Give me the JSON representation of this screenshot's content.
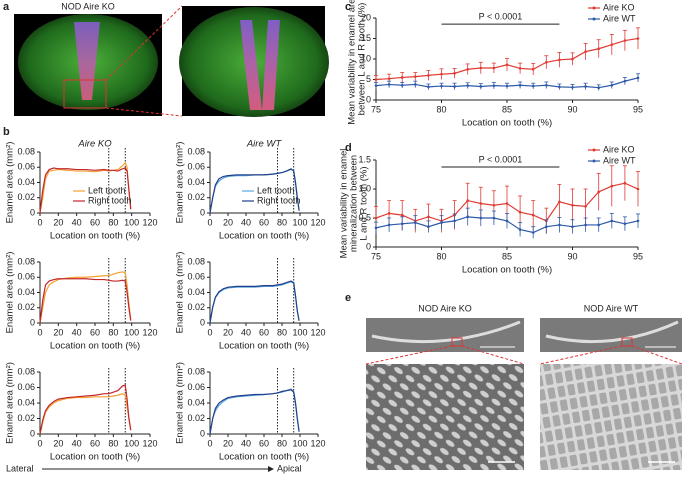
{
  "panel_letters": [
    "a",
    "b",
    "c",
    "d",
    "e"
  ],
  "panel_a_label": "NOD Aire KO",
  "panel_e_labels": [
    "NOD Aire KO",
    "NOD Aire WT"
  ],
  "axis_direction": {
    "left": "Lateral",
    "right": "Apical"
  },
  "chart_data": [
    {
      "type": "line",
      "title": "Aire KO",
      "x_label": "Location on tooth (%)",
      "y_label": "Enamel area (mm²)",
      "x": [
        0,
        3,
        6,
        10,
        15,
        20,
        30,
        40,
        50,
        60,
        70,
        75,
        80,
        85,
        90,
        93,
        95,
        97,
        99
      ],
      "xlim": [
        0,
        120
      ],
      "xticks": [
        0,
        20,
        40,
        60,
        80,
        100,
        120
      ],
      "ylim": [
        0,
        0.08
      ],
      "yticks": [
        0,
        0.02,
        0.04,
        0.06,
        0.08
      ],
      "vlines": [
        75,
        93
      ],
      "legend": "lower center",
      "series": [
        {
          "name": "Left tooth",
          "color": "#f5a031",
          "values": [
            0,
            0.02,
            0.045,
            0.055,
            0.056,
            0.057,
            0.056,
            0.055,
            0.055,
            0.054,
            0.056,
            0.055,
            0.056,
            0.057,
            0.062,
            0.066,
            0.06,
            0.03,
            0.005
          ]
        },
        {
          "name": "Right tooth",
          "color": "#c3262b",
          "values": [
            0,
            0.03,
            0.05,
            0.057,
            0.059,
            0.058,
            0.058,
            0.057,
            0.057,
            0.056,
            0.057,
            0.056,
            0.056,
            0.055,
            0.058,
            0.059,
            0.055,
            0.03,
            0.005
          ]
        }
      ]
    },
    {
      "type": "line",
      "title": "Aire WT",
      "x_label": "Location on tooth (%)",
      "y_label": "Enamel area (mm²)",
      "x": [
        0,
        3,
        6,
        10,
        15,
        20,
        30,
        40,
        50,
        60,
        70,
        75,
        80,
        85,
        90,
        93,
        95,
        97,
        99
      ],
      "xlim": [
        0,
        120
      ],
      "xticks": [
        0,
        20,
        40,
        60,
        80,
        100,
        120
      ],
      "ylim": [
        0,
        0.08
      ],
      "yticks": [
        0,
        0.02,
        0.04,
        0.06,
        0.08
      ],
      "vlines": [
        75,
        93
      ],
      "legend": "lower center",
      "series": [
        {
          "name": "Left tooth",
          "color": "#5ba6dc",
          "values": [
            0,
            0.02,
            0.035,
            0.042,
            0.046,
            0.048,
            0.049,
            0.049,
            0.05,
            0.05,
            0.051,
            0.052,
            0.053,
            0.055,
            0.057,
            0.056,
            0.04,
            0.02,
            0.003
          ]
        },
        {
          "name": "Right tooth",
          "color": "#23408c",
          "values": [
            0,
            0.02,
            0.037,
            0.045,
            0.048,
            0.049,
            0.05,
            0.05,
            0.05,
            0.05,
            0.051,
            0.052,
            0.053,
            0.055,
            0.058,
            0.055,
            0.04,
            0.02,
            0.003
          ]
        }
      ]
    },
    {
      "type": "line",
      "x_label": "Location on tooth (%)",
      "y_label": "Enamel area (mm²)",
      "x": [
        0,
        3,
        6,
        10,
        15,
        20,
        30,
        40,
        50,
        60,
        70,
        75,
        80,
        85,
        90,
        93,
        95,
        97,
        99
      ],
      "xlim": [
        0,
        120
      ],
      "xticks": [
        0,
        20,
        40,
        60,
        80,
        100,
        120
      ],
      "ylim": [
        0,
        0.08
      ],
      "yticks": [
        0,
        0.02,
        0.04,
        0.06,
        0.08
      ],
      "vlines": [
        75,
        93
      ],
      "series": [
        {
          "color": "#f5a031",
          "values": [
            0,
            0.02,
            0.04,
            0.05,
            0.054,
            0.057,
            0.059,
            0.06,
            0.06,
            0.061,
            0.062,
            0.062,
            0.064,
            0.066,
            0.067,
            0.066,
            0.05,
            0.025,
            0.005
          ]
        },
        {
          "color": "#c3262b",
          "values": [
            0,
            0.03,
            0.05,
            0.055,
            0.057,
            0.058,
            0.058,
            0.058,
            0.058,
            0.057,
            0.057,
            0.056,
            0.055,
            0.055,
            0.056,
            0.055,
            0.04,
            0.02,
            0.003
          ]
        }
      ]
    },
    {
      "type": "line",
      "x_label": "Location on tooth (%)",
      "y_label": "Enamel area (mm²)",
      "x": [
        0,
        3,
        6,
        10,
        15,
        20,
        30,
        40,
        50,
        60,
        70,
        75,
        80,
        85,
        90,
        93,
        95,
        97,
        99
      ],
      "xlim": [
        0,
        120
      ],
      "xticks": [
        0,
        20,
        40,
        60,
        80,
        100,
        120
      ],
      "ylim": [
        0,
        0.08
      ],
      "yticks": [
        0,
        0.02,
        0.04,
        0.06,
        0.08
      ],
      "vlines": [
        75,
        93
      ],
      "series": [
        {
          "color": "#5ba6dc",
          "values": [
            0,
            0.02,
            0.033,
            0.04,
            0.044,
            0.046,
            0.047,
            0.047,
            0.047,
            0.048,
            0.048,
            0.049,
            0.05,
            0.052,
            0.054,
            0.052,
            0.035,
            0.015,
            0.003
          ]
        },
        {
          "color": "#23408c",
          "values": [
            0,
            0.021,
            0.034,
            0.041,
            0.045,
            0.047,
            0.048,
            0.048,
            0.048,
            0.049,
            0.049,
            0.05,
            0.051,
            0.053,
            0.055,
            0.053,
            0.036,
            0.016,
            0.003
          ]
        }
      ]
    },
    {
      "type": "line",
      "x_label": "Location on tooth (%)",
      "y_label": "Enamel area (mm²)",
      "x": [
        0,
        3,
        6,
        10,
        15,
        20,
        30,
        40,
        50,
        60,
        70,
        75,
        80,
        85,
        90,
        93,
        95,
        97,
        99
      ],
      "xlim": [
        0,
        120
      ],
      "xticks": [
        0,
        20,
        40,
        60,
        80,
        100,
        120
      ],
      "ylim": [
        0,
        0.08
      ],
      "yticks": [
        0,
        0.02,
        0.04,
        0.06,
        0.08
      ],
      "vlines": [
        75,
        93
      ],
      "series": [
        {
          "color": "#f5a031",
          "values": [
            0,
            0.015,
            0.028,
            0.035,
            0.04,
            0.043,
            0.046,
            0.047,
            0.047,
            0.048,
            0.048,
            0.048,
            0.049,
            0.05,
            0.052,
            0.05,
            0.035,
            0.02,
            0.005
          ]
        },
        {
          "color": "#c3262b",
          "values": [
            0,
            0.018,
            0.03,
            0.037,
            0.042,
            0.045,
            0.047,
            0.048,
            0.049,
            0.05,
            0.052,
            0.052,
            0.054,
            0.056,
            0.062,
            0.063,
            0.045,
            0.02,
            0.005
          ]
        }
      ]
    },
    {
      "type": "line",
      "x_label": "Location on tooth (%)",
      "y_label": "Enamel area (mm²)",
      "x": [
        0,
        3,
        6,
        10,
        15,
        20,
        30,
        40,
        50,
        60,
        70,
        75,
        80,
        85,
        90,
        93,
        95,
        97,
        99
      ],
      "xlim": [
        0,
        120
      ],
      "xticks": [
        0,
        20,
        40,
        60,
        80,
        100,
        120
      ],
      "ylim": [
        0,
        0.08
      ],
      "yticks": [
        0,
        0.02,
        0.04,
        0.06,
        0.08
      ],
      "vlines": [
        75,
        93
      ],
      "series": [
        {
          "color": "#5ba6dc",
          "values": [
            0,
            0.02,
            0.03,
            0.037,
            0.042,
            0.046,
            0.048,
            0.049,
            0.05,
            0.051,
            0.052,
            0.053,
            0.054,
            0.056,
            0.058,
            0.055,
            0.04,
            0.02,
            0.003
          ]
        },
        {
          "color": "#23408c",
          "values": [
            0,
            0.02,
            0.033,
            0.04,
            0.044,
            0.047,
            0.049,
            0.05,
            0.051,
            0.051,
            0.052,
            0.053,
            0.055,
            0.056,
            0.057,
            0.054,
            0.04,
            0.02,
            0.003
          ]
        }
      ]
    },
    {
      "type": "line",
      "x_label": "Location on tooth (%)",
      "y_label": [
        "Mean variability in enamel area",
        "between L and R tooth (%)"
      ],
      "x": [
        75,
        76,
        77,
        78,
        79,
        80,
        81,
        82,
        83,
        84,
        85,
        86,
        87,
        88,
        89,
        90,
        91,
        92,
        93,
        94,
        95
      ],
      "xlim": [
        75,
        95
      ],
      "xticks": [
        75,
        80,
        85,
        90,
        95
      ],
      "ylim": [
        0,
        20
      ],
      "yticks": [
        0,
        5,
        10,
        15,
        20
      ],
      "legend": "upper right",
      "bracket": {
        "x": [
          80,
          89
        ],
        "y": 18.5,
        "label": "P < 0.0001"
      },
      "series": [
        {
          "name": "Aire KO",
          "color": "#e03a32",
          "values": [
            5,
            5.2,
            5.5,
            5.7,
            6,
            6.3,
            6.5,
            7.5,
            7.8,
            7.8,
            8.6,
            7.7,
            7.5,
            9.2,
            9.8,
            10,
            11.8,
            12.5,
            13.5,
            14.5,
            15
          ],
          "errors": [
            1,
            1.1,
            1.2,
            1,
            1.2,
            1.3,
            1.2,
            1.3,
            1.4,
            1.2,
            1.5,
            1.3,
            1.4,
            1.6,
            1.8,
            1.5,
            2,
            2.2,
            2.5,
            2.5,
            2.6
          ]
        },
        {
          "name": "Aire WT",
          "color": "#2f5aa8",
          "values": [
            3.5,
            3.8,
            3.6,
            3.8,
            3.2,
            3.4,
            3.3,
            3.5,
            3.3,
            3.5,
            3.4,
            3.6,
            3.4,
            3.6,
            3.2,
            3.1,
            3.3,
            3,
            3.6,
            4.6,
            5.4
          ],
          "errors": [
            0.8,
            0.8,
            0.7,
            0.8,
            0.7,
            0.7,
            0.8,
            0.7,
            0.7,
            0.8,
            0.7,
            0.8,
            0.7,
            0.8,
            0.7,
            0.7,
            0.8,
            0.7,
            0.8,
            0.9,
            1
          ]
        }
      ]
    },
    {
      "type": "line",
      "x_label": "Location on tooth (%)",
      "y_label": [
        "Mean variability in enamel",
        "mineralization between",
        "L and R tooth (%)"
      ],
      "x": [
        75,
        76,
        77,
        78,
        79,
        80,
        81,
        82,
        83,
        84,
        85,
        86,
        87,
        88,
        89,
        90,
        91,
        92,
        93,
        94,
        95
      ],
      "xlim": [
        75,
        95
      ],
      "xticks": [
        75,
        80,
        85,
        90,
        95
      ],
      "ylim": [
        0,
        1.5
      ],
      "yticks": [
        0,
        0.5,
        {
          "value": 1,
          "label": "1.0"
        },
        1.5
      ],
      "legend": "upper right",
      "bracket": {
        "x": [
          80,
          89
        ],
        "y": 1.38,
        "label": "P < 0.0001"
      },
      "series": [
        {
          "name": "Aire KO",
          "color": "#e03a32",
          "values": [
            0.5,
            0.58,
            0.55,
            0.45,
            0.52,
            0.45,
            0.55,
            0.8,
            0.75,
            0.72,
            0.75,
            0.6,
            0.55,
            0.45,
            0.78,
            0.72,
            0.7,
            0.95,
            1.05,
            1.1,
            1
          ],
          "errors": [
            0.2,
            0.22,
            0.25,
            0.2,
            0.22,
            0.2,
            0.25,
            0.3,
            0.28,
            0.25,
            0.3,
            0.28,
            0.25,
            0.22,
            0.3,
            0.28,
            0.3,
            0.32,
            0.35,
            0.3,
            0.3
          ]
        },
        {
          "name": "Aire WT",
          "color": "#2f5aa8",
          "values": [
            0.33,
            0.38,
            0.4,
            0.42,
            0.35,
            0.42,
            0.45,
            0.52,
            0.5,
            0.5,
            0.45,
            0.3,
            0.25,
            0.35,
            0.38,
            0.35,
            0.38,
            0.38,
            0.45,
            0.4,
            0.45
          ],
          "errors": [
            0.1,
            0.12,
            0.12,
            0.12,
            0.1,
            0.12,
            0.12,
            0.15,
            0.14,
            0.12,
            0.13,
            0.12,
            0.1,
            0.12,
            0.13,
            0.12,
            0.12,
            0.12,
            0.13,
            0.12,
            0.12
          ]
        }
      ]
    }
  ]
}
